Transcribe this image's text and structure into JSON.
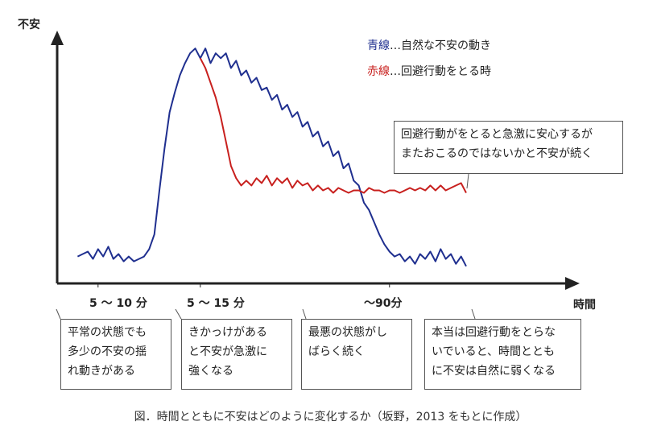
{
  "chart_data": {
    "type": "line",
    "ylabel": "不安",
    "xlabel": "時間",
    "xlim": [
      0,
      100
    ],
    "ylim": [
      0,
      100
    ],
    "x_ticks": [
      {
        "x": 8,
        "label": "5 ～ 10 分"
      },
      {
        "x": 28,
        "label": "5 ～ 15 分"
      },
      {
        "x": 65,
        "label": "～90分"
      }
    ],
    "legend": [
      {
        "key": "青線",
        "sep": "…",
        "text": "自然な不安の動き",
        "color": "#1f2f8f"
      },
      {
        "key": "赤線",
        "sep": "…",
        "text": "回避行動をとる時",
        "color": "#c8201e"
      }
    ],
    "series": [
      {
        "name": "青線",
        "color": "#1f2f8f",
        "points": [
          [
            4,
            11
          ],
          [
            5,
            12
          ],
          [
            6,
            13
          ],
          [
            7,
            10
          ],
          [
            8,
            14
          ],
          [
            9,
            11
          ],
          [
            10,
            15
          ],
          [
            11,
            10
          ],
          [
            12,
            12
          ],
          [
            13,
            9
          ],
          [
            14,
            11
          ],
          [
            15,
            9
          ],
          [
            16,
            10
          ],
          [
            17,
            11
          ],
          [
            18,
            14
          ],
          [
            19,
            20
          ],
          [
            20,
            38
          ],
          [
            21,
            55
          ],
          [
            22,
            70
          ],
          [
            23,
            78
          ],
          [
            24,
            85
          ],
          [
            25,
            90
          ],
          [
            26,
            94
          ],
          [
            27,
            96
          ],
          [
            28,
            92
          ],
          [
            29,
            96
          ],
          [
            30,
            90
          ],
          [
            31,
            94
          ],
          [
            32,
            92
          ],
          [
            33,
            94
          ],
          [
            34,
            88
          ],
          [
            35,
            91
          ],
          [
            36,
            85
          ],
          [
            37,
            87
          ],
          [
            38,
            82
          ],
          [
            39,
            84
          ],
          [
            40,
            79
          ],
          [
            41,
            80
          ],
          [
            42,
            75
          ],
          [
            43,
            77
          ],
          [
            44,
            71
          ],
          [
            45,
            73
          ],
          [
            46,
            68
          ],
          [
            47,
            70
          ],
          [
            48,
            64
          ],
          [
            49,
            66
          ],
          [
            50,
            60
          ],
          [
            51,
            62
          ],
          [
            52,
            56
          ],
          [
            53,
            58
          ],
          [
            54,
            52
          ],
          [
            55,
            54
          ],
          [
            56,
            47
          ],
          [
            57,
            49
          ],
          [
            58,
            42
          ],
          [
            59,
            40
          ],
          [
            60,
            33
          ],
          [
            61,
            30
          ],
          [
            62,
            25
          ],
          [
            63,
            20
          ],
          [
            64,
            16
          ],
          [
            65,
            13
          ],
          [
            66,
            11
          ],
          [
            67,
            12
          ],
          [
            68,
            9
          ],
          [
            69,
            11
          ],
          [
            70,
            8
          ],
          [
            71,
            12
          ],
          [
            72,
            10
          ],
          [
            73,
            13
          ],
          [
            74,
            9
          ],
          [
            75,
            14
          ],
          [
            76,
            10
          ],
          [
            77,
            12
          ],
          [
            78,
            8
          ],
          [
            79,
            11
          ],
          [
            80,
            7
          ]
        ]
      },
      {
        "name": "赤線",
        "color": "#c8201e",
        "points": [
          [
            28,
            92
          ],
          [
            29,
            88
          ],
          [
            30,
            82
          ],
          [
            31,
            76
          ],
          [
            32,
            68
          ],
          [
            33,
            58
          ],
          [
            34,
            48
          ],
          [
            35,
            43
          ],
          [
            36,
            40
          ],
          [
            37,
            42
          ],
          [
            38,
            40
          ],
          [
            39,
            43
          ],
          [
            40,
            41
          ],
          [
            41,
            44
          ],
          [
            42,
            40
          ],
          [
            43,
            43
          ],
          [
            44,
            41
          ],
          [
            45,
            43
          ],
          [
            46,
            39
          ],
          [
            47,
            42
          ],
          [
            48,
            40
          ],
          [
            49,
            41
          ],
          [
            50,
            38
          ],
          [
            51,
            40
          ],
          [
            52,
            38
          ],
          [
            53,
            39
          ],
          [
            54,
            37
          ],
          [
            55,
            39
          ],
          [
            56,
            38
          ],
          [
            57,
            37
          ],
          [
            58,
            38
          ],
          [
            59,
            38
          ],
          [
            60,
            37
          ],
          [
            61,
            39
          ],
          [
            62,
            38
          ],
          [
            63,
            38
          ],
          [
            64,
            37
          ],
          [
            65,
            38
          ],
          [
            66,
            38
          ],
          [
            67,
            37
          ],
          [
            68,
            38
          ],
          [
            69,
            39
          ],
          [
            70,
            38
          ],
          [
            71,
            39
          ],
          [
            72,
            38
          ],
          [
            73,
            40
          ],
          [
            74,
            38
          ],
          [
            75,
            40
          ],
          [
            76,
            38
          ],
          [
            77,
            39
          ],
          [
            78,
            40
          ],
          [
            79,
            41
          ],
          [
            80,
            37
          ]
        ]
      }
    ],
    "annotations": [
      {
        "name": "callout-avoidance",
        "lines": [
          "回避行動がをとると急激に安心するが",
          "またおこるのではないかと不安が続く"
        ]
      },
      {
        "name": "callout-normal",
        "lines": [
          "平常の状態でも",
          "多少の不安の揺",
          "れ動きがある"
        ]
      },
      {
        "name": "callout-trigger",
        "lines": [
          "きかっけがある",
          "と不安が急激に",
          "強くなる"
        ]
      },
      {
        "name": "callout-worst",
        "lines": [
          "最悪の状態がし",
          "ばらく続く"
        ]
      },
      {
        "name": "callout-natural-decline",
        "lines": [
          "本当は回避行動をとらな",
          "いでいると、時間ととも",
          "に不安は自然に弱くなる"
        ]
      }
    ],
    "caption": "図．時間とともに不安はどのように変化するか（坂野，2013 をもとに作成）"
  }
}
